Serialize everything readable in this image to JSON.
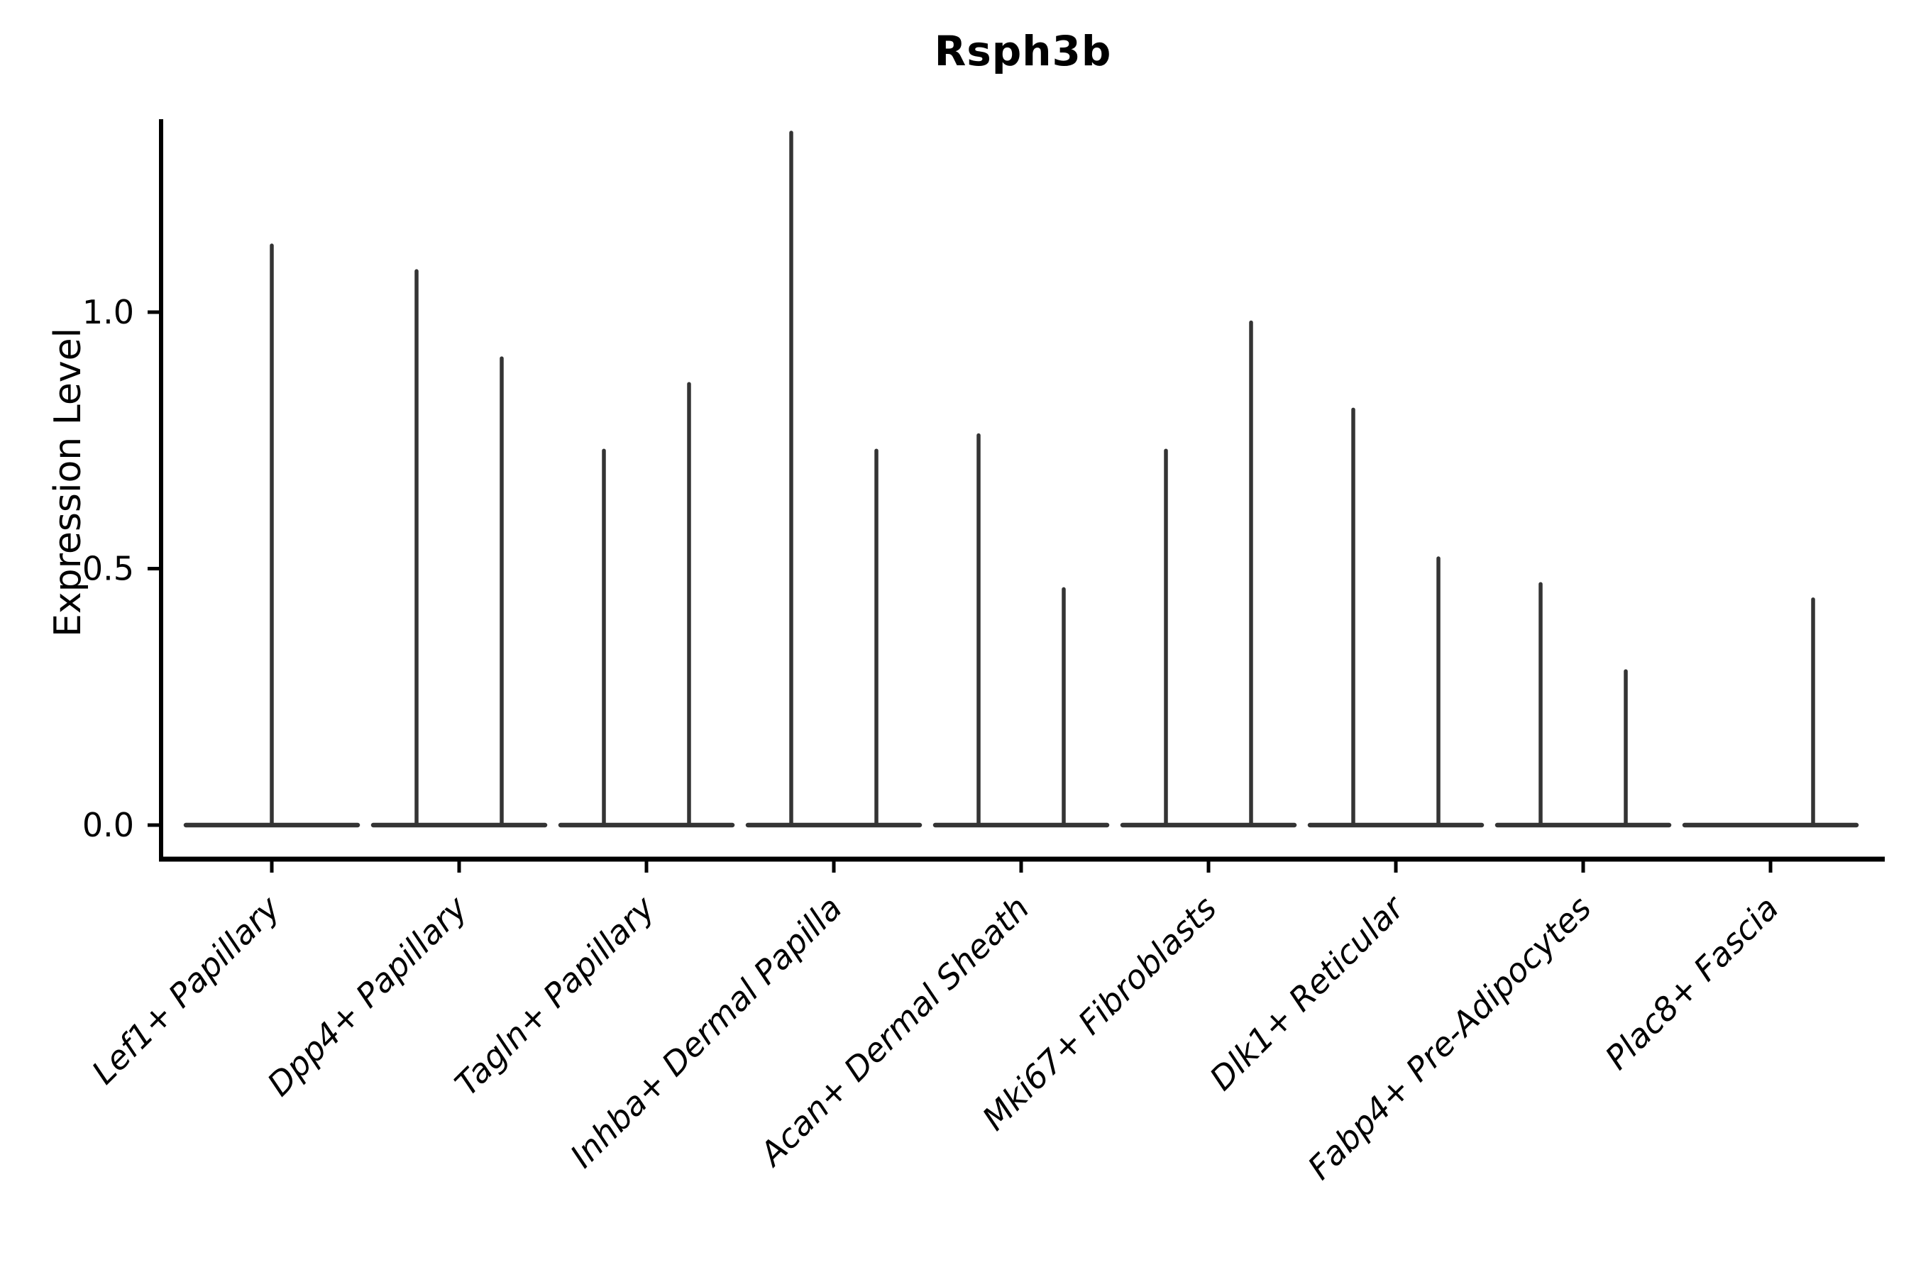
{
  "figure": {
    "title": "Rsph3b",
    "background_color": "#ffffff"
  },
  "chart_data": {
    "type": "violin",
    "title": "Rsph3b",
    "xlabel": "",
    "ylabel": "Expression Level",
    "ylim": [
      -0.07,
      1.38
    ],
    "yticks": [
      0.0,
      0.5,
      1.0
    ],
    "ytick_labels": [
      "0.0",
      "0.5",
      "1.0"
    ],
    "grid": false,
    "legend_position": "none",
    "categories": [
      "Lef1+ Papillary",
      "Dpp4+ Papillary",
      "Tagln+ Papillary",
      "Inhba+ Dermal Papilla",
      "Acan+ Dermal Sheath",
      "Mki67+ Fibroblasts",
      "Dlk1+ Reticular",
      "Fabp4+ Pre-Adipocytes",
      "Plac8+ Fascia"
    ],
    "description": "Violin plot of Rsph3b expression; each cluster shows a flat violin body at 0 with thin density spikes rising to the maximum expression of each sub-distribution.",
    "violins": [
      {
        "category": "Lef1+ Papillary",
        "spikes": [
          {
            "dx": 0,
            "value": 1.13
          }
        ]
      },
      {
        "category": "Dpp4+ Papillary",
        "spikes": [
          {
            "dx": -60,
            "value": 1.08
          },
          {
            "dx": 60,
            "value": 0.91
          }
        ]
      },
      {
        "category": "Tagln+ Papillary",
        "spikes": [
          {
            "dx": -60,
            "value": 0.73
          },
          {
            "dx": 60,
            "value": 0.86
          }
        ]
      },
      {
        "category": "Inhba+ Dermal Papilla",
        "spikes": [
          {
            "dx": -60,
            "value": 1.35
          },
          {
            "dx": 60,
            "value": 0.73
          }
        ]
      },
      {
        "category": "Acan+ Dermal Sheath",
        "spikes": [
          {
            "dx": -60,
            "value": 0.76
          },
          {
            "dx": 60,
            "value": 0.46
          }
        ]
      },
      {
        "category": "Mki67+ Fibroblasts",
        "spikes": [
          {
            "dx": -60,
            "value": 0.73
          },
          {
            "dx": 60,
            "value": 0.98
          }
        ]
      },
      {
        "category": "Dlk1+ Reticular",
        "spikes": [
          {
            "dx": -60,
            "value": 0.81
          },
          {
            "dx": 60,
            "value": 0.52
          }
        ]
      },
      {
        "category": "Fabp4+ Pre-Adipocytes",
        "spikes": [
          {
            "dx": -60,
            "value": 0.47
          },
          {
            "dx": 60,
            "value": 0.3
          }
        ]
      },
      {
        "category": "Plac8+ Fascia",
        "spikes": [
          {
            "dx": 60,
            "value": 0.44
          }
        ]
      }
    ],
    "violin_body": {
      "half_width": 121,
      "baseline_value": 0.0
    },
    "colors": {
      "violin_line": "#343434",
      "axis": "#000000",
      "text": "#000000",
      "background": "#ffffff"
    }
  }
}
